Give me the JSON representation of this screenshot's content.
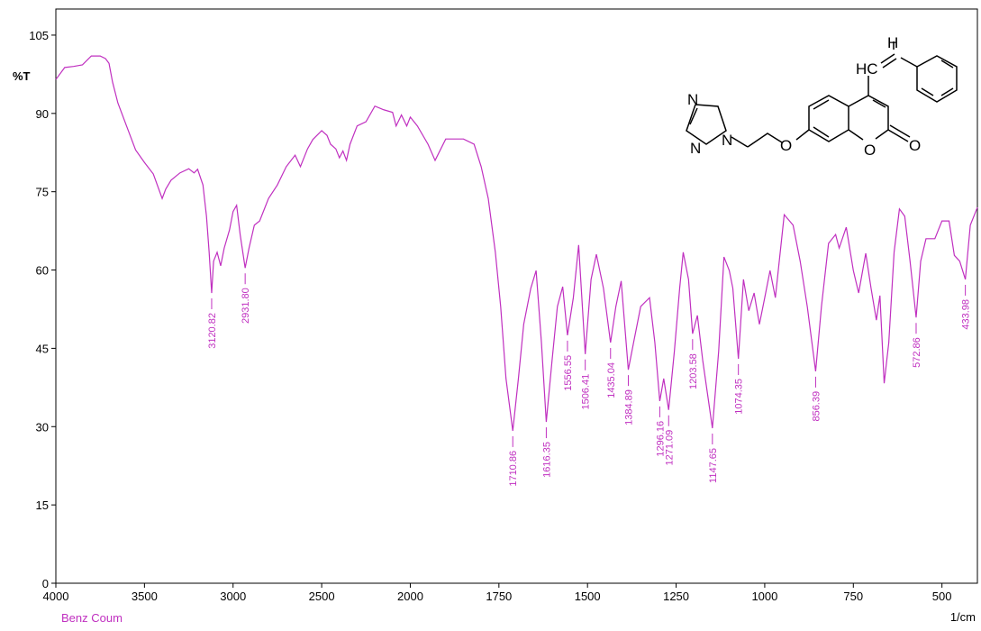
{
  "chart_data": {
    "type": "line",
    "x_label": "1/cm",
    "y_label": "%T",
    "xlim": [
      4000,
      400
    ],
    "xbreak": 2000,
    "ylim": [
      0,
      110
    ],
    "xticks": [
      4000,
      3500,
      3000,
      2500,
      2000,
      1750,
      1500,
      1250,
      1000,
      750,
      500
    ],
    "yticks": [
      0,
      15,
      30,
      45,
      60,
      75,
      90,
      105
    ],
    "x": [
      4000,
      3950,
      3900,
      3850,
      3800,
      3750,
      3720,
      3700,
      3680,
      3650,
      3600,
      3550,
      3500,
      3450,
      3400,
      3380,
      3350,
      3300,
      3250,
      3220,
      3200,
      3170,
      3150,
      3135,
      3120.82,
      3110,
      3090,
      3070,
      3050,
      3020,
      3000,
      2980,
      2960,
      2931.8,
      2910,
      2880,
      2850,
      2800,
      2750,
      2700,
      2650,
      2620,
      2580,
      2550,
      2500,
      2470,
      2450,
      2420,
      2400,
      2380,
      2360,
      2340,
      2300,
      2250,
      2200,
      2150,
      2100,
      2080,
      2050,
      2020,
      2000,
      1980,
      1950,
      1930,
      1900,
      1850,
      1820,
      1800,
      1780,
      1760,
      1745,
      1730,
      1710.86,
      1695,
      1680,
      1660,
      1645,
      1630,
      1616.35,
      1600,
      1585,
      1570,
      1556.55,
      1540,
      1525,
      1506.41,
      1490,
      1475,
      1455,
      1435.04,
      1420,
      1405,
      1384.89,
      1370,
      1350,
      1325,
      1310,
      1296.16,
      1285,
      1271.09,
      1255,
      1240,
      1230,
      1215,
      1203.58,
      1190,
      1175,
      1147.65,
      1130,
      1115,
      1100,
      1090,
      1074.35,
      1060,
      1045,
      1030,
      1015,
      1000,
      985,
      970,
      945,
      920,
      900,
      880,
      856.39,
      840,
      820,
      800,
      790,
      770,
      750,
      735,
      715,
      700,
      685,
      675,
      663,
      650,
      635,
      620,
      605,
      590,
      572.86,
      560,
      545,
      520,
      500,
      480,
      465,
      450,
      433.98,
      420,
      400
    ],
    "series": [
      {
        "name": "Benz Coum",
        "color": "#c030c0",
        "values": [
          96.5,
          98.8,
          99,
          99.3,
          101,
          101,
          100.5,
          99.6,
          96,
          92,
          87.5,
          83,
          80.6,
          78.4,
          73.7,
          75.5,
          77.2,
          78.6,
          79.4,
          78.6,
          79.3,
          76.3,
          70.3,
          63.4,
          55.6,
          61.7,
          63.4,
          60.8,
          64.2,
          67.7,
          71.2,
          72.4,
          66.8,
          60.4,
          64.2,
          68.6,
          69.4,
          73.7,
          76.3,
          79.8,
          82,
          79.8,
          83.2,
          85,
          86.7,
          85.8,
          84.1,
          83.2,
          81.5,
          82.8,
          81,
          84.1,
          87.6,
          88.4,
          91.4,
          90.7,
          90.2,
          87.6,
          89.7,
          87.6,
          89.3,
          87.6,
          84.1,
          81,
          85.1,
          85.1,
          84.1,
          79.8,
          73.7,
          63.4,
          53,
          39.2,
          29.2,
          39.2,
          49.6,
          56.5,
          59.9,
          46.1,
          30.9,
          42.7,
          53,
          56.8,
          47.5,
          54.7,
          64.8,
          43.9,
          58.2,
          63,
          56.5,
          46.1,
          53,
          57.9,
          40.9,
          46.1,
          53,
          54.7,
          46.1,
          34.9,
          39.2,
          33.2,
          44.4,
          56.5,
          63.4,
          58.2,
          47.8,
          51.3,
          42.7,
          29.7,
          44.4,
          62.5,
          59.9,
          56.5,
          43,
          58.2,
          52.2,
          55.6,
          49.6,
          54.7,
          59.9,
          54.7,
          70.6,
          68.6,
          61.7,
          53,
          40.6,
          53,
          65.1,
          66.8,
          64.2,
          68.2,
          59.9,
          55.6,
          63.2,
          56.5,
          50.4,
          55.1,
          38.3,
          46.1,
          63.4,
          71.7,
          70.3,
          61.7,
          50.9,
          61.7,
          66,
          66,
          69.4,
          69.4,
          62.8,
          61.7,
          58.2,
          68.6,
          72
        ]
      }
    ],
    "peaks": {
      "x": [
        3120.82,
        2931.8,
        1710.86,
        1616.35,
        1556.55,
        1506.41,
        1435.04,
        1384.89,
        1296.16,
        1271.09,
        1203.58,
        1147.65,
        1074.35,
        856.39,
        572.86,
        433.98
      ],
      "y": [
        55.6,
        60.4,
        29.2,
        30.9,
        47.5,
        43.9,
        46.1,
        40.9,
        34.9,
        33.2,
        47.8,
        29.7,
        43,
        40.6,
        50.9,
        58.2
      ],
      "labels": [
        "3120.82",
        "2931.80",
        "1710.86",
        "1616.35",
        "1556.55",
        "1506.41",
        "1435.04",
        "1384.89",
        "1296.16",
        "1271.09",
        "1203.58",
        "1147.65",
        "1074.35",
        "856.39",
        "572.86",
        "433.98"
      ]
    },
    "structure": {
      "atoms": [
        "H",
        "HC",
        "N",
        "N",
        "N",
        "O",
        "O",
        "O"
      ]
    }
  }
}
